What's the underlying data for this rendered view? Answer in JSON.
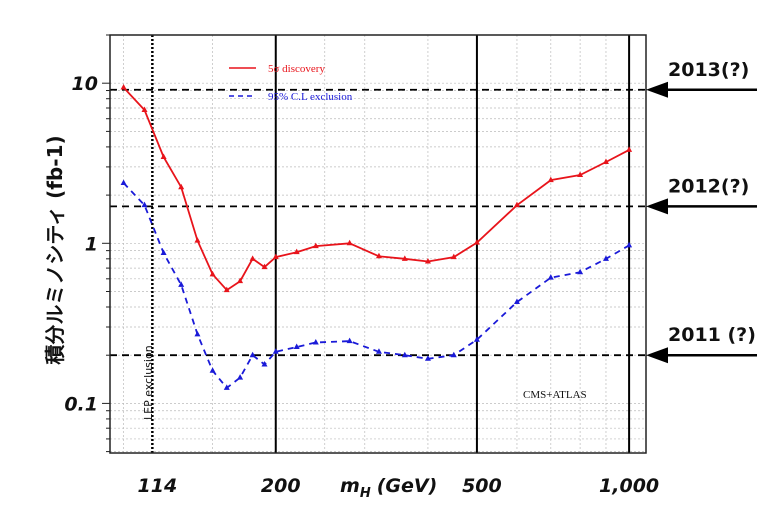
{
  "chart_data": {
    "type": "line",
    "title": "",
    "xlabel": "m_H (GeV)",
    "xlabel_main": "m",
    "xlabel_sub": "H",
    "xlabel_unit": "(GeV)",
    "ylabel": "積分ルミノシティ (fb-1)",
    "xscale": "log",
    "yscale": "log",
    "xlim": [
      94,
      1080
    ],
    "ylim": [
      0.049,
      20
    ],
    "x_tick_labels": [
      {
        "value": 114,
        "label": "114"
      },
      {
        "value": 200,
        "label": "200"
      },
      {
        "value": 500,
        "label": "500"
      },
      {
        "value": 1000,
        "label": "1,000"
      }
    ],
    "y_tick_labels": [
      {
        "value": 10,
        "label": "10"
      },
      {
        "value": 1,
        "label": "1"
      },
      {
        "value": 0.1,
        "label": "0.1"
      }
    ],
    "grid": true,
    "legend_position": "top-center",
    "series": [
      {
        "name": "5σ discovery",
        "color": "#e8141b",
        "style": "solid",
        "x": [
          100,
          110,
          120,
          130,
          140,
          150,
          160,
          170,
          180,
          190,
          200,
          220,
          240,
          280,
          320,
          360,
          400,
          450,
          500,
          600,
          700,
          800,
          900,
          1000
        ],
        "y": [
          9.4,
          6.8,
          3.46,
          2.24,
          1.04,
          0.64,
          0.51,
          0.58,
          0.8,
          0.71,
          0.82,
          0.88,
          0.96,
          1.0,
          0.83,
          0.8,
          0.77,
          0.82,
          1.01,
          1.73,
          2.48,
          2.67,
          3.22,
          3.83
        ]
      },
      {
        "name": "95% C.L exclusion",
        "color": "#1a1ad8",
        "style": "dashed",
        "x": [
          100,
          110,
          120,
          130,
          140,
          150,
          160,
          170,
          180,
          190,
          200,
          220,
          240,
          280,
          320,
          360,
          400,
          450,
          500,
          600,
          700,
          800,
          900,
          1000
        ],
        "y": [
          2.38,
          1.73,
          0.87,
          0.55,
          0.27,
          0.16,
          0.125,
          0.145,
          0.2,
          0.175,
          0.21,
          0.225,
          0.24,
          0.245,
          0.21,
          0.2,
          0.19,
          0.2,
          0.25,
          0.43,
          0.61,
          0.66,
          0.8,
          0.97
        ]
      }
    ],
    "reference_lines": {
      "vertical_solid": [
        200,
        500,
        1000
      ],
      "lep_exclusion": {
        "value": 114,
        "label": "LEP exclusion"
      },
      "horizontal_targets": [
        {
          "value": 9.1,
          "label": "2013(?)"
        },
        {
          "value": 1.7,
          "label": "2012(?)"
        },
        {
          "value": 0.2,
          "label": "2011 (?)"
        }
      ]
    },
    "annotations": [
      "CMS+ATLAS"
    ]
  }
}
